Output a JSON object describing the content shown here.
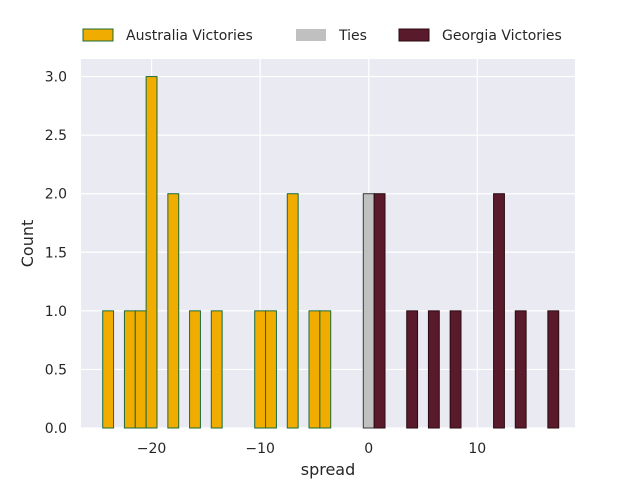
{
  "chart_data": {
    "type": "bar",
    "title": "",
    "xlabel": "spread",
    "ylabel": "Count",
    "xlim": [
      -26.5,
      19
    ],
    "ylim": [
      0,
      3.15
    ],
    "bar_width": 1.0,
    "xticks": [
      -20,
      -10,
      0,
      10
    ],
    "xtick_labels": [
      "−20",
      "−10",
      "0",
      "10"
    ],
    "yticks": [
      0,
      0.5,
      1.0,
      1.5,
      2.0,
      2.5,
      3.0
    ],
    "ytick_labels": [
      "0.0",
      "0.5",
      "1.0",
      "1.5",
      "2.0",
      "2.5",
      "3.0"
    ],
    "grid": true,
    "legend_position": "top",
    "series": [
      {
        "name": "Australia Victories",
        "color": "#f0ad00",
        "edge_color": "#1a6b3a",
        "x": [
          -24,
          -22,
          -21,
          -20,
          -18,
          -16,
          -14,
          -10,
          -9,
          -7,
          -5,
          -4
        ],
        "values": [
          1,
          1,
          1,
          3,
          2,
          1,
          1,
          1,
          1,
          2,
          1,
          1
        ]
      },
      {
        "name": "Ties",
        "color": "#c0c0c0",
        "edge_color": "#3a3a3a",
        "x": [
          0
        ],
        "values": [
          2
        ]
      },
      {
        "name": "Georgia Victories",
        "color": "#591a2b",
        "edge_color": "#2b0a12",
        "x": [
          1,
          4,
          6,
          8,
          12,
          14,
          17
        ],
        "values": [
          2,
          1,
          1,
          1,
          2,
          1,
          1
        ]
      }
    ]
  }
}
